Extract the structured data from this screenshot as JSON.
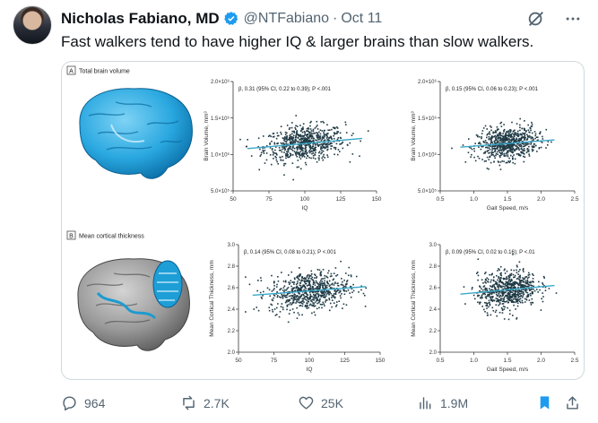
{
  "tweet": {
    "author": {
      "name": "Nicholas Fabiano, MD",
      "handle": "@NTFabiano",
      "date": "Oct 11"
    },
    "separator": "·",
    "text": "Fast walkers tend to have higher IQ & larger brains than slow walkers.",
    "stats": {
      "replies": "964",
      "reposts": "2.7K",
      "likes": "25K",
      "views": "1.9M"
    }
  },
  "figure": {
    "panels": [
      {
        "letter": "A",
        "title": "Total brain volume"
      },
      {
        "letter": "B",
        "title": "Mean cortical thickness"
      }
    ],
    "plots": [
      {
        "annotation": "β, 0.31 (95% CI, 0.22 to 0.39); P <.001",
        "xlabel": "IQ",
        "ylabel": "Brain Volume, mm³",
        "xticks": [
          "50",
          "75",
          "100",
          "125",
          "150"
        ],
        "yticks": [
          "2.0×10⁶",
          "1.5×10⁶",
          "1.0×10⁶",
          "5.0×10⁵"
        ]
      },
      {
        "annotation": "β, 0.15 (95% CI, 0.06 to 0.23); P <.001",
        "xlabel": "Gait Speed, m/s",
        "ylabel": "Brain Volume, mm³",
        "xticks": [
          "0.5",
          "1.0",
          "1.5",
          "2.0",
          "2.5"
        ],
        "yticks": [
          "2.0×10⁶",
          "1.5×10⁶",
          "1.0×10⁶",
          "5.0×10⁵"
        ]
      },
      {
        "annotation": "β, 0.14 (95% CI, 0.08 to 0.21); P <.001",
        "xlabel": "IQ",
        "ylabel": "Mean Cortical Thickness, mm",
        "xticks": [
          "50",
          "75",
          "100",
          "125",
          "150"
        ],
        "yticks": [
          "3.0",
          "2.8",
          "2.6",
          "2.4",
          "2.2",
          "2.0"
        ]
      },
      {
        "annotation": "β, 0.09 (95% CI, 0.02 to 0.16); P <.01",
        "xlabel": "Gait Speed, m/s",
        "ylabel": "Mean Cortical Thickness, mm",
        "xticks": [
          "0.5",
          "1.0",
          "1.5",
          "2.0",
          "2.5"
        ],
        "yticks": [
          "3.0",
          "2.8",
          "2.6",
          "2.4",
          "2.2",
          "2.0"
        ]
      }
    ]
  },
  "chart_data": [
    {
      "type": "scatter",
      "x_range": [
        50,
        150
      ],
      "y_range": [
        500000,
        2000000
      ],
      "x_center": 100,
      "x_spread": 14,
      "y_center": 1150000,
      "y_spread": 120000,
      "fit_y": [
        1080000,
        1220000
      ],
      "fit_x": [
        60,
        140
      ],
      "n": 700
    },
    {
      "type": "scatter",
      "x_range": [
        0.5,
        2.5
      ],
      "y_range": [
        500000,
        2000000
      ],
      "x_center": 1.5,
      "x_spread": 0.22,
      "y_center": 1150000,
      "y_spread": 110000,
      "fit_y": [
        1100000,
        1200000
      ],
      "fit_x": [
        0.8,
        2.2
      ],
      "n": 700
    },
    {
      "type": "scatter",
      "x_range": [
        50,
        150
      ],
      "y_range": [
        2.0,
        3.0
      ],
      "x_center": 100,
      "x_spread": 14,
      "y_center": 2.57,
      "y_spread": 0.09,
      "fit_y": [
        2.53,
        2.61
      ],
      "fit_x": [
        60,
        140
      ],
      "n": 700
    },
    {
      "type": "scatter",
      "x_range": [
        0.5,
        2.5
      ],
      "y_range": [
        2.0,
        3.0
      ],
      "x_center": 1.5,
      "x_spread": 0.22,
      "y_center": 2.58,
      "y_spread": 0.09,
      "fit_y": [
        2.54,
        2.62
      ],
      "fit_x": [
        0.8,
        2.2
      ],
      "n": 700
    }
  ],
  "colors": {
    "accent": "#1d9bf0",
    "text": "#0f1419",
    "muted": "#536471",
    "dot": "#1f3a45",
    "fit": "#3aa8c9"
  },
  "icons": [
    "verified-badge-icon",
    "grok-icon",
    "more-icon",
    "reply-icon",
    "repost-icon",
    "like-icon",
    "views-icon",
    "bookmark-icon",
    "share-icon"
  ]
}
